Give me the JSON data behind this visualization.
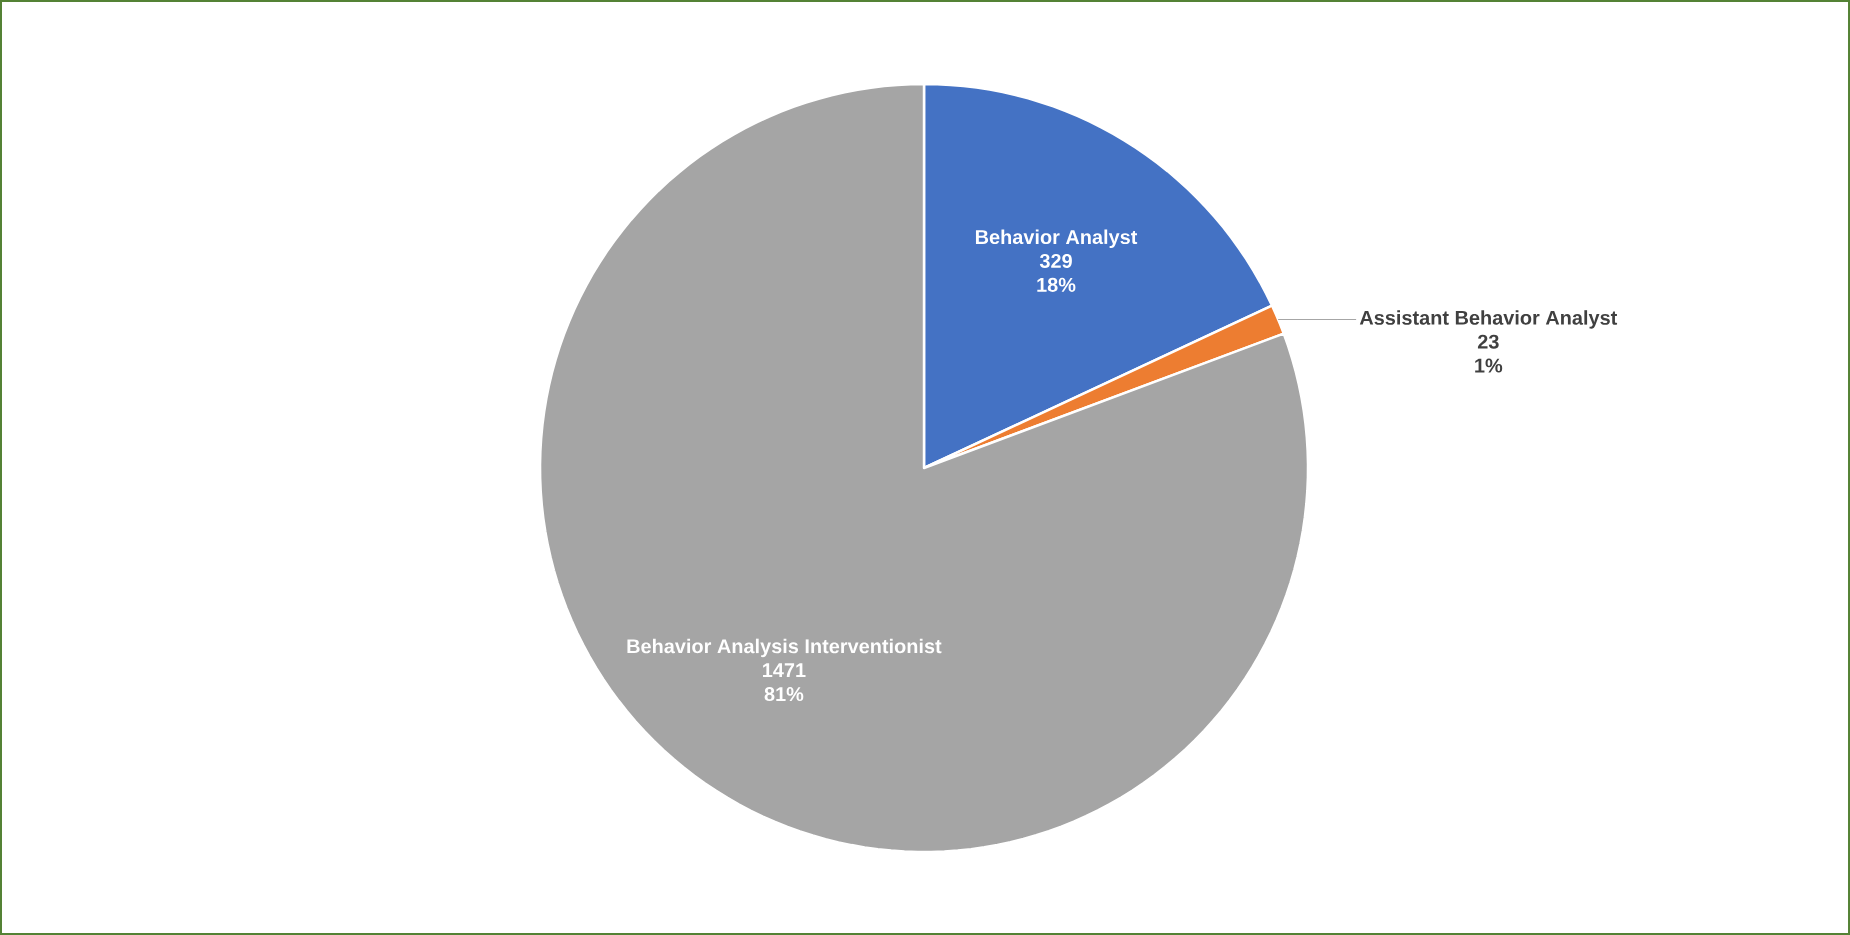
{
  "chart_data": {
    "type": "pie",
    "categories": [
      "Behavior Analyst",
      "Assistant Behavior Analyst",
      "Behavior Analysis Interventionist"
    ],
    "values": [
      329,
      23,
      1471
    ],
    "colors": [
      "#4472c4",
      "#ed7d31",
      "#a5a5a5"
    ],
    "value_labels": [
      "329",
      "23",
      "1471"
    ],
    "annotations": [
      "18%",
      "1%",
      "81%"
    ]
  }
}
